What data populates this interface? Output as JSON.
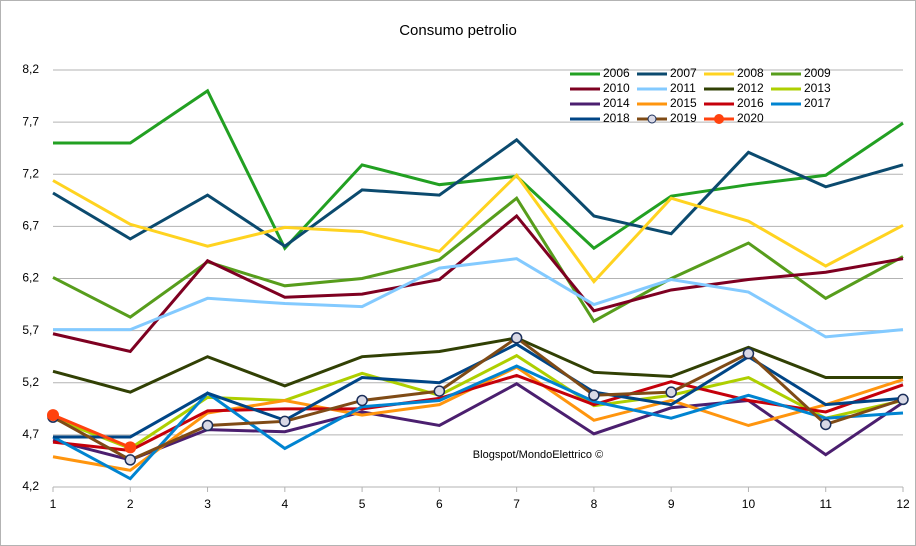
{
  "chart_data": {
    "type": "line",
    "title": "Consumo petrolio",
    "annotation": "Blogspot/MondoElettrico ©",
    "x": [
      1,
      2,
      3,
      4,
      5,
      6,
      7,
      8,
      9,
      10,
      11,
      12
    ],
    "xlim": [
      1,
      12
    ],
    "xticks": [
      1,
      2,
      3,
      4,
      5,
      6,
      7,
      8,
      9,
      10,
      11,
      12
    ],
    "ylim": [
      4.2,
      8.2
    ],
    "yticks": [
      {
        "value": 4.2,
        "label": "4,2"
      },
      {
        "value": 4.7,
        "label": "4,7"
      },
      {
        "value": 5.2,
        "label": "5,2"
      },
      {
        "value": 5.7,
        "label": "5,7"
      },
      {
        "value": 6.2,
        "label": "6,2"
      },
      {
        "value": 6.7,
        "label": "6,7"
      },
      {
        "value": 7.2,
        "label": "7,2"
      },
      {
        "value": 7.7,
        "label": "7,7"
      },
      {
        "value": 8.2,
        "label": "8,2"
      }
    ],
    "grid": true,
    "legend": "top-right",
    "series": [
      {
        "name": "2006",
        "color": "#22a022",
        "values": [
          7.5,
          7.5,
          8.0,
          6.49,
          7.29,
          7.1,
          7.18,
          6.49,
          6.99,
          7.1,
          7.19,
          7.69
        ]
      },
      {
        "name": "2007",
        "color": "#0b4a6e",
        "values": [
          7.02,
          6.58,
          7.0,
          6.51,
          7.05,
          7.0,
          7.53,
          6.8,
          6.63,
          7.41,
          7.08,
          7.29
        ]
      },
      {
        "name": "2008",
        "color": "#ffd320",
        "values": [
          7.14,
          6.72,
          6.51,
          6.69,
          6.65,
          6.46,
          7.19,
          6.17,
          6.97,
          6.75,
          6.32,
          6.71
        ]
      },
      {
        "name": "2009",
        "color": "#579d1c",
        "values": [
          6.21,
          5.83,
          6.36,
          6.13,
          6.2,
          6.38,
          6.97,
          5.79,
          6.2,
          6.54,
          6.01,
          6.41
        ]
      },
      {
        "name": "2010",
        "color": "#7e0021",
        "values": [
          5.67,
          5.5,
          6.37,
          6.02,
          6.05,
          6.19,
          6.8,
          5.89,
          6.09,
          6.19,
          6.26,
          6.39
        ]
      },
      {
        "name": "2011",
        "color": "#83caff",
        "values": [
          5.71,
          5.71,
          6.01,
          5.96,
          5.93,
          6.3,
          6.39,
          5.95,
          6.19,
          6.07,
          5.64,
          5.71
        ]
      },
      {
        "name": "2012",
        "color": "#314004",
        "values": [
          5.31,
          5.11,
          5.45,
          5.17,
          5.45,
          5.5,
          5.63,
          5.3,
          5.26,
          5.54,
          5.25,
          5.25
        ]
      },
      {
        "name": "2013",
        "color": "#aecf00",
        "values": [
          4.86,
          4.57,
          5.06,
          5.03,
          5.29,
          5.08,
          5.46,
          4.98,
          5.08,
          5.25,
          4.86,
          5.03
        ]
      },
      {
        "name": "2014",
        "color": "#4b1f6f",
        "values": [
          4.65,
          4.46,
          4.75,
          4.73,
          4.92,
          4.79,
          5.19,
          4.71,
          4.96,
          5.03,
          4.51,
          5.01
        ]
      },
      {
        "name": "2015",
        "color": "#ff950e",
        "values": [
          4.49,
          4.36,
          4.91,
          5.03,
          4.89,
          4.99,
          5.35,
          4.84,
          5.03,
          4.79,
          4.99,
          5.23
        ]
      },
      {
        "name": "2016",
        "color": "#c5000b",
        "values": [
          4.63,
          4.55,
          4.93,
          4.95,
          4.95,
          5.05,
          5.27,
          4.99,
          5.21,
          5.03,
          4.92,
          5.18
        ]
      },
      {
        "name": "2017",
        "color": "#0084d1",
        "values": [
          4.68,
          4.28,
          5.1,
          4.57,
          4.97,
          5.03,
          5.36,
          5.02,
          4.86,
          5.08,
          4.86,
          4.91
        ]
      },
      {
        "name": "2018",
        "color": "#004586",
        "values": [
          4.68,
          4.68,
          5.1,
          4.84,
          5.25,
          5.2,
          5.57,
          5.11,
          4.99,
          5.45,
          4.99,
          5.05
        ]
      },
      {
        "name": "2019",
        "color": "#7f4b16",
        "marker": "ring",
        "values": [
          4.87,
          4.46,
          4.79,
          4.83,
          5.03,
          5.12,
          5.63,
          5.08,
          5.11,
          5.48,
          4.8,
          5.04
        ]
      },
      {
        "name": "2020",
        "color": "#ff420e",
        "marker": "dot",
        "values": [
          4.89,
          4.58,
          null,
          null,
          null,
          null,
          null,
          null,
          null,
          null,
          null,
          null
        ]
      }
    ]
  }
}
